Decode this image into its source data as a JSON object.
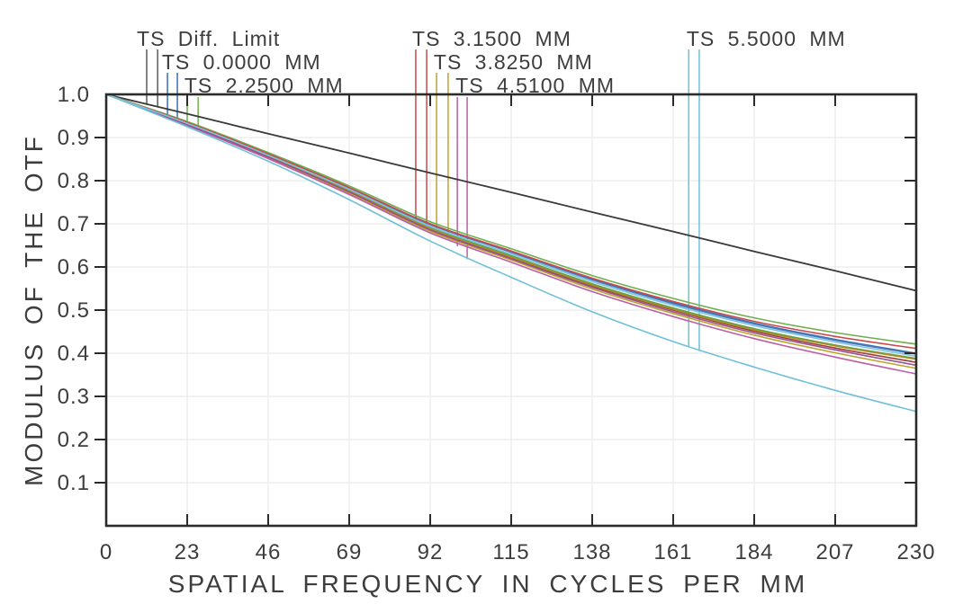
{
  "chart_data": {
    "type": "line",
    "title": "",
    "xlabel": "SPATIAL FREQUENCY IN CYCLES PER MM",
    "ylabel": "MODULUS OF THE OTF",
    "xlim": [
      0,
      230
    ],
    "ylim": [
      0,
      1.0
    ],
    "x_ticks": [
      0,
      23,
      46,
      69,
      92,
      115,
      138,
      161,
      184,
      207,
      230
    ],
    "y_ticks": [
      0.1,
      0.2,
      0.3,
      0.4,
      0.5,
      0.6,
      0.7,
      0.8,
      0.9,
      1.0
    ],
    "grid": true,
    "legend_position": "top-callouts",
    "x": [
      0,
      23,
      46,
      69,
      92,
      115,
      138,
      161,
      184,
      207,
      230
    ],
    "series": [
      {
        "name": "Diff. Limit",
        "color": "#3a3a3a",
        "values": [
          1.0,
          0.955,
          0.909,
          0.864,
          0.818,
          0.773,
          0.727,
          0.682,
          0.636,
          0.591,
          0.545
        ]
      },
      {
        "name": "T 0.0000 MM",
        "color": "#3d6eb5",
        "values": [
          1.0,
          0.935,
          0.862,
          0.784,
          0.7,
          0.636,
          0.572,
          0.517,
          0.47,
          0.432,
          0.4
        ]
      },
      {
        "name": "S 0.0000 MM",
        "color": "#4a79bd",
        "values": [
          1.0,
          0.934,
          0.86,
          0.782,
          0.698,
          0.634,
          0.57,
          0.515,
          0.468,
          0.43,
          0.398
        ]
      },
      {
        "name": "T 2.2500 MM",
        "color": "#6fae4e",
        "values": [
          1.0,
          0.937,
          0.865,
          0.788,
          0.705,
          0.642,
          0.58,
          0.527,
          0.482,
          0.448,
          0.421
        ]
      },
      {
        "name": "S 2.2500 MM",
        "color": "#5d9e44",
        "values": [
          1.0,
          0.932,
          0.858,
          0.778,
          0.692,
          0.626,
          0.561,
          0.505,
          0.457,
          0.419,
          0.388
        ]
      },
      {
        "name": "T 3.1500 MM",
        "color": "#c94949",
        "values": [
          1.0,
          0.935,
          0.862,
          0.784,
          0.7,
          0.637,
          0.574,
          0.52,
          0.474,
          0.439,
          0.411
        ]
      },
      {
        "name": "S 3.1500 MM",
        "color": "#a03c3c",
        "values": [
          1.0,
          0.931,
          0.856,
          0.775,
          0.688,
          0.622,
          0.556,
          0.5,
          0.451,
          0.412,
          0.379
        ]
      },
      {
        "name": "T 3.8250 MM",
        "color": "#bfa22e",
        "values": [
          1.0,
          0.929,
          0.853,
          0.771,
          0.683,
          0.616,
          0.549,
          0.492,
          0.442,
          0.401,
          0.365
        ]
      },
      {
        "name": "S 3.8250 MM",
        "color": "#ab8f25",
        "values": [
          1.0,
          0.931,
          0.856,
          0.776,
          0.689,
          0.623,
          0.558,
          0.502,
          0.454,
          0.417,
          0.386
        ]
      },
      {
        "name": "T 4.5100 MM",
        "color": "#bb5fa4",
        "values": [
          1.0,
          0.928,
          0.851,
          0.768,
          0.679,
          0.611,
          0.543,
          0.485,
          0.434,
          0.391,
          0.352
        ]
      },
      {
        "name": "S 4.5100 MM",
        "color": "#95518f",
        "values": [
          1.0,
          0.93,
          0.855,
          0.774,
          0.686,
          0.619,
          0.553,
          0.496,
          0.447,
          0.408,
          0.372
        ]
      },
      {
        "name": "T 5.5000 MM",
        "color": "#6fc0d8",
        "values": [
          1.0,
          0.925,
          0.845,
          0.756,
          0.66,
          0.576,
          0.496,
          0.427,
          0.368,
          0.314,
          0.265
        ]
      },
      {
        "name": "S 5.5000 MM",
        "color": "#7cc5da",
        "values": [
          1.0,
          0.933,
          0.859,
          0.78,
          0.694,
          0.63,
          0.566,
          0.511,
          0.464,
          0.426,
          0.393
        ]
      }
    ],
    "annotations": [
      {
        "label": "TS  Diff. Limit",
        "line_color": "#5a5a5a",
        "row": 1,
        "label_x": 8.7,
        "line_xs": [
          11.5,
          14.6
        ],
        "line_bottoms": [
          0.977,
          0.97
        ]
      },
      {
        "label": "TS  0.0000  MM",
        "line_color": "#3d6eb5",
        "row": 2,
        "label_x": 15.8,
        "line_xs": [
          17.4,
          20.2
        ],
        "line_bottoms": [
          0.95,
          0.941
        ]
      },
      {
        "label": "TS  2.2500  MM",
        "line_color": "#6fae4e",
        "row": 3,
        "label_x": 22.2,
        "line_xs": [
          23.0,
          26.1
        ],
        "line_bottoms": [
          0.936,
          0.927
        ]
      },
      {
        "label": "TS  3.1500  MM",
        "line_color": "#c94949",
        "row": 1,
        "label_x": 86.9,
        "line_xs": [
          87.9,
          91.0
        ],
        "line_bottoms": [
          0.705,
          0.699
        ]
      },
      {
        "label": "TS  3.8250  MM",
        "line_color": "#bfa22e",
        "row": 2,
        "label_x": 93.0,
        "line_xs": [
          93.8,
          97.1
        ],
        "line_bottoms": [
          0.678,
          0.666
        ]
      },
      {
        "label": "TS  4.5100  MM",
        "line_color": "#bb5fa4",
        "row": 3,
        "label_x": 99.2,
        "line_xs": [
          99.7,
          102.5
        ],
        "line_bottoms": [
          0.648,
          0.618
        ]
      },
      {
        "label": "TS  5.5000  MM",
        "line_color": "#6fc0d8",
        "row": 1,
        "label_x": 164.8,
        "line_xs": [
          165.4,
          168.4
        ],
        "line_bottoms": [
          0.415,
          0.405
        ]
      }
    ],
    "style": {
      "frame_color": "#2b2b2b",
      "grid_color": "#eaeaea",
      "text_color": "#3d3d3d",
      "background": "#ffffff"
    }
  }
}
